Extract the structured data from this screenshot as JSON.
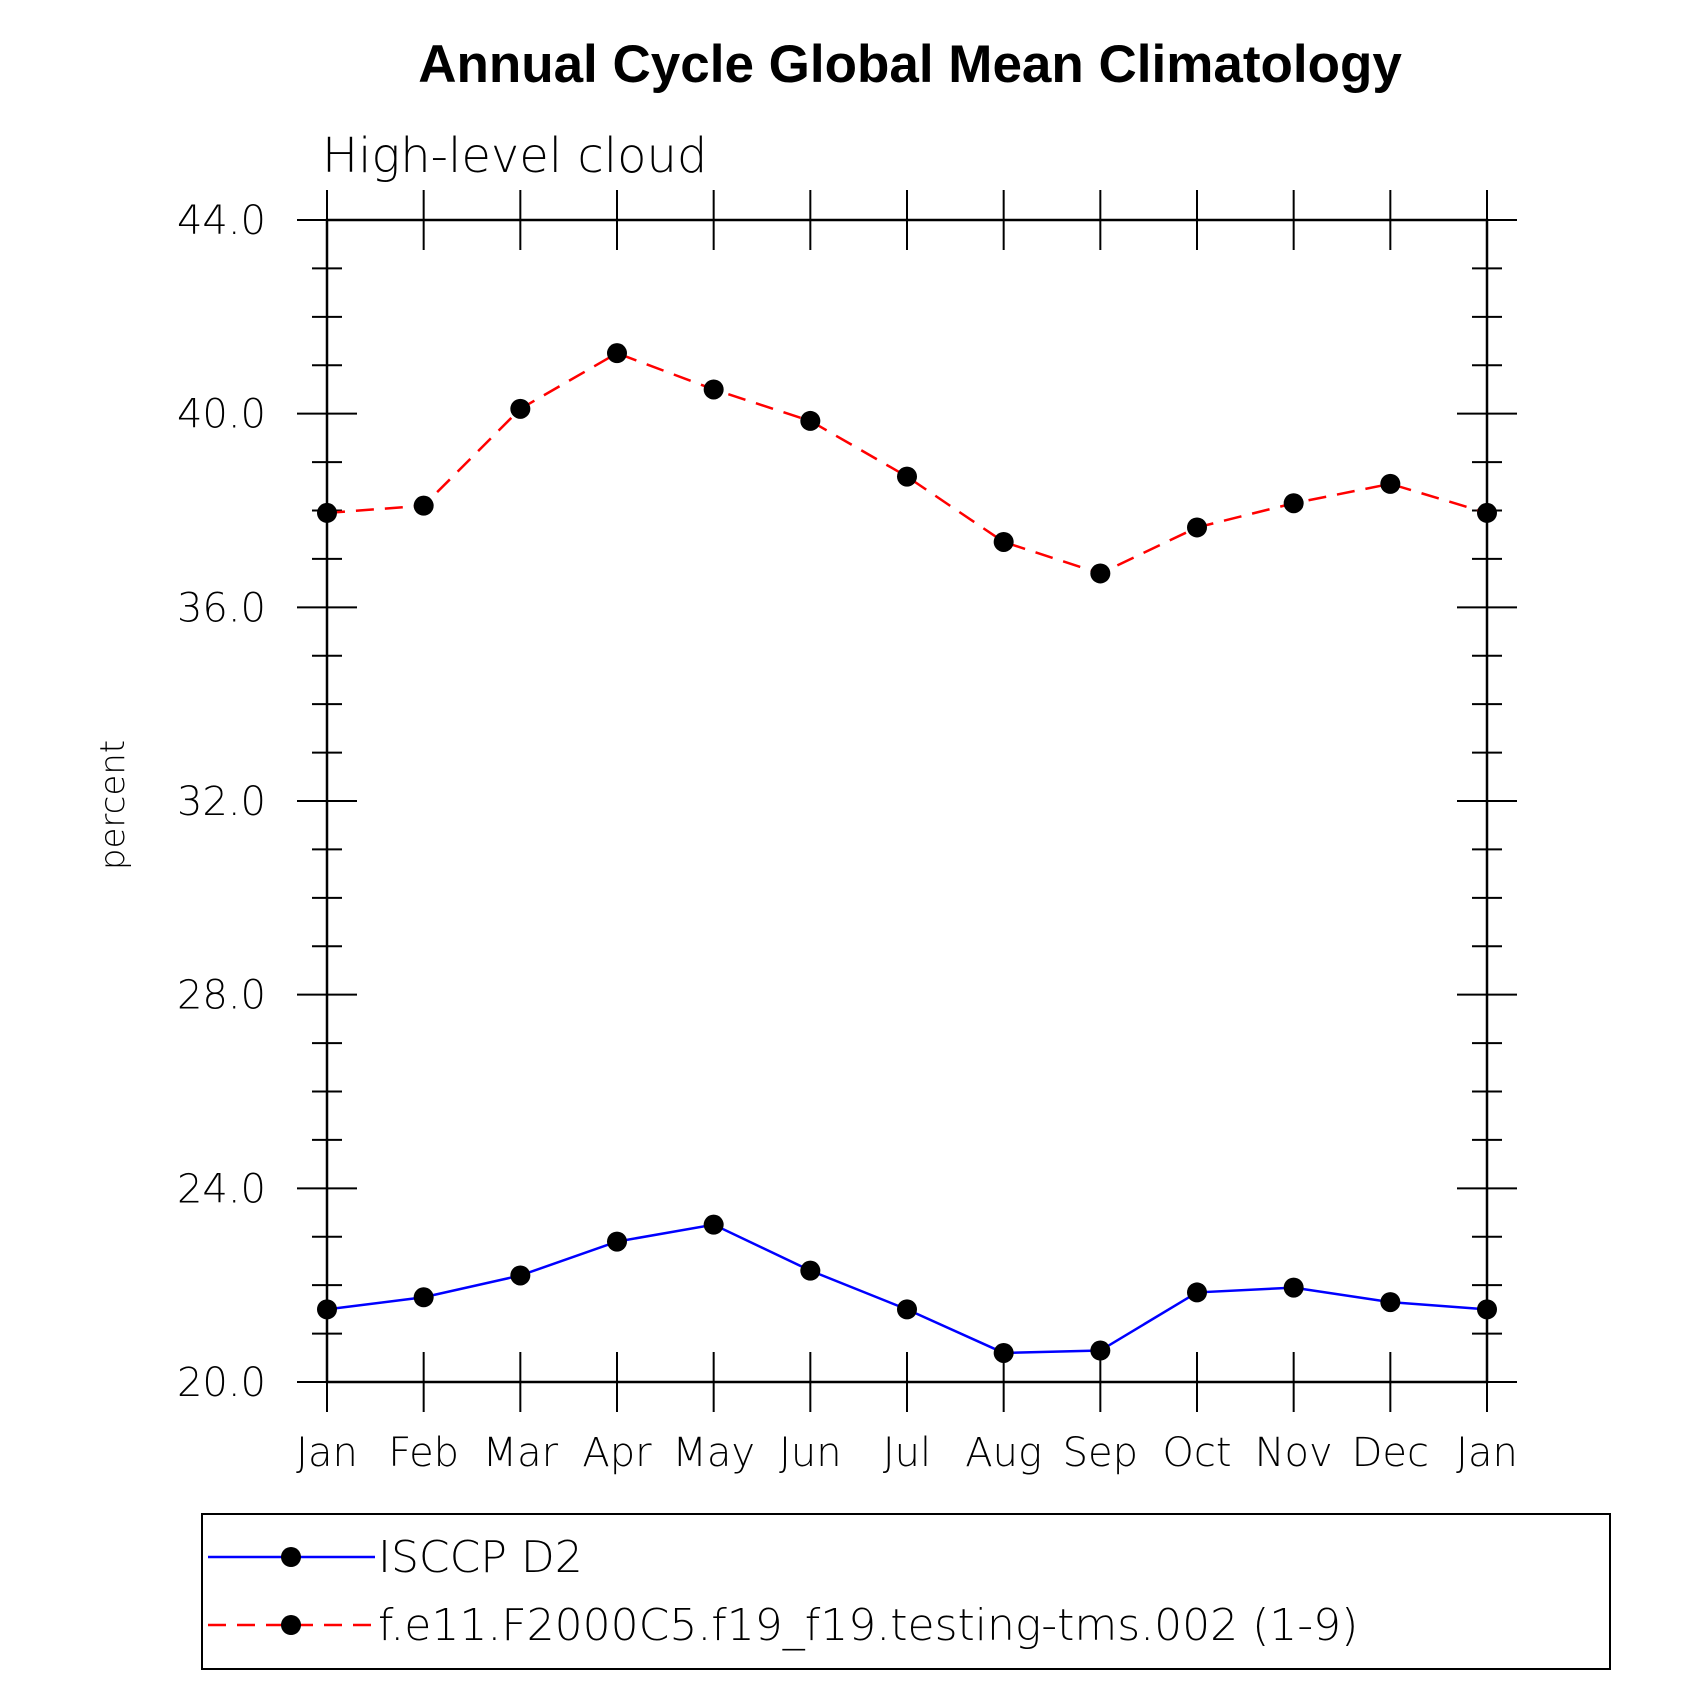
{
  "chart_data": {
    "type": "line",
    "title": "Annual Cycle Global Mean Climatology",
    "subtitle": "High-level cloud",
    "xlabel": "",
    "ylabel": "percent",
    "categories": [
      "Jan",
      "Feb",
      "Mar",
      "Apr",
      "May",
      "Jun",
      "Jul",
      "Aug",
      "Sep",
      "Oct",
      "Nov",
      "Dec",
      "Jan"
    ],
    "ylim": [
      20.0,
      44.0
    ],
    "yticks": [
      "20.0",
      "24.0",
      "28.0",
      "32.0",
      "36.0",
      "40.0",
      "44.0"
    ],
    "grid": false,
    "legend_position": "bottom",
    "series": [
      {
        "name": "ISCCP D2",
        "color": "#0000ff",
        "style": "solid",
        "marker": "filled-circle",
        "values": [
          21.5,
          21.75,
          22.2,
          22.9,
          23.25,
          22.3,
          21.5,
          20.6,
          20.65,
          21.85,
          21.95,
          21.65,
          21.5
        ]
      },
      {
        "name": "f.e11.F2000C5.f19_f19.testing-tms.002 (1-9)",
        "color": "#ff0000",
        "style": "dashed",
        "marker": "filled-circle",
        "values": [
          37.95,
          38.1,
          40.1,
          41.25,
          40.5,
          39.85,
          38.7,
          37.35,
          36.7,
          37.65,
          38.15,
          38.55,
          37.95
        ]
      }
    ]
  }
}
